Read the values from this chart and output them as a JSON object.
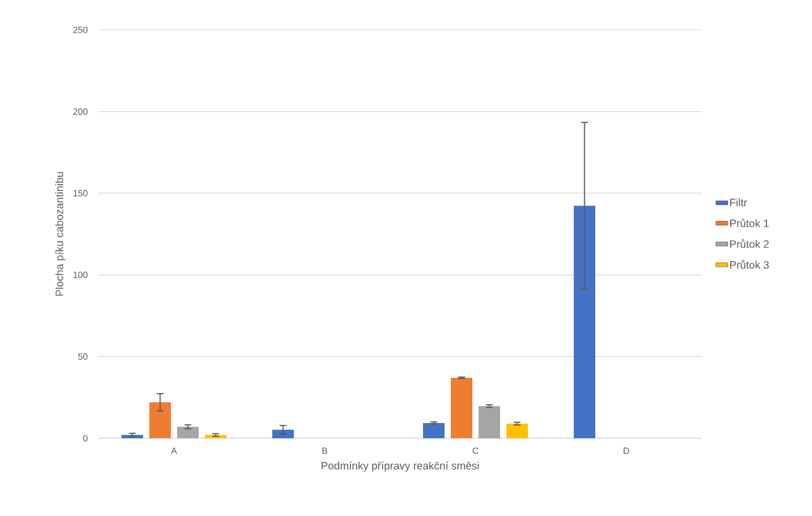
{
  "chart_data": {
    "type": "bar",
    "xlabel": "Podmínky přípravy reakční směsi",
    "ylabel": "Plocha píku cabozantinibu",
    "categories": [
      "A",
      "B",
      "C",
      "D"
    ],
    "series": [
      {
        "name": "Filtr",
        "color": "#4472c4",
        "values": [
          2,
          5.2,
          9.3,
          142.3
        ],
        "errors": [
          1,
          2.6,
          0.7,
          51
        ]
      },
      {
        "name": "Průtok 1",
        "color": "#ed7d31",
        "values": [
          22,
          null,
          37,
          null
        ],
        "errors": [
          5.3,
          null,
          0.4,
          null
        ]
      },
      {
        "name": "Průtok 2",
        "color": "#a5a5a5",
        "values": [
          7,
          null,
          19.7,
          null
        ],
        "errors": [
          1.2,
          null,
          0.8,
          null
        ]
      },
      {
        "name": "Průtok 3",
        "color": "#ffc000",
        "values": [
          2,
          null,
          8.9,
          null
        ],
        "errors": [
          0.8,
          null,
          0.8,
          null
        ]
      }
    ],
    "ylim": [
      0,
      250
    ],
    "yticks": [
      0,
      50,
      100,
      150,
      200,
      250
    ],
    "grid": "y",
    "legend": "right"
  }
}
